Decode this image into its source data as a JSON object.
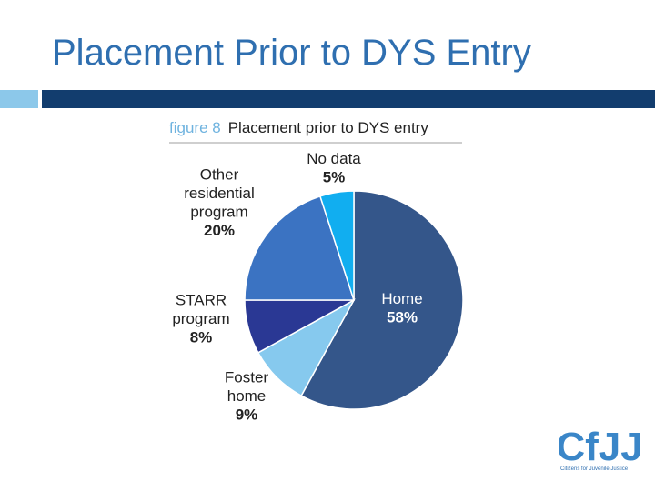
{
  "slide": {
    "title": "Placement Prior to DYS Entry"
  },
  "figure": {
    "number": "figure 8",
    "caption": "Placement prior to DYS entry"
  },
  "logo": {
    "text": "CfJJ",
    "tagline": "Citizens for Juvenile Justice"
  },
  "colors": {
    "title": "#2f6fb0",
    "bar_light": "#8cc8ea",
    "bar_dark": "#123d6e",
    "figure_number": "#6fb3df"
  },
  "chart_data": {
    "type": "pie",
    "title": "Placement prior to DYS entry",
    "slices": [
      {
        "label": [
          "Home"
        ],
        "value": 58,
        "display": "58%",
        "color": "#34568a",
        "label_color": "#ffffff"
      },
      {
        "label": [
          "Foster",
          "home"
        ],
        "value": 9,
        "display": "9%",
        "color": "#86c9ee",
        "label_color": "#222222"
      },
      {
        "label": [
          "STARR",
          "program"
        ],
        "value": 8,
        "display": "8%",
        "color": "#2a3894",
        "label_color": "#222222"
      },
      {
        "label": [
          "Other",
          "residential",
          "program"
        ],
        "value": 20,
        "display": "20%",
        "color": "#3b73c2",
        "label_color": "#222222"
      },
      {
        "label": [
          "No data"
        ],
        "value": 5,
        "display": "5%",
        "color": "#11aef0",
        "label_color": "#222222"
      }
    ]
  }
}
